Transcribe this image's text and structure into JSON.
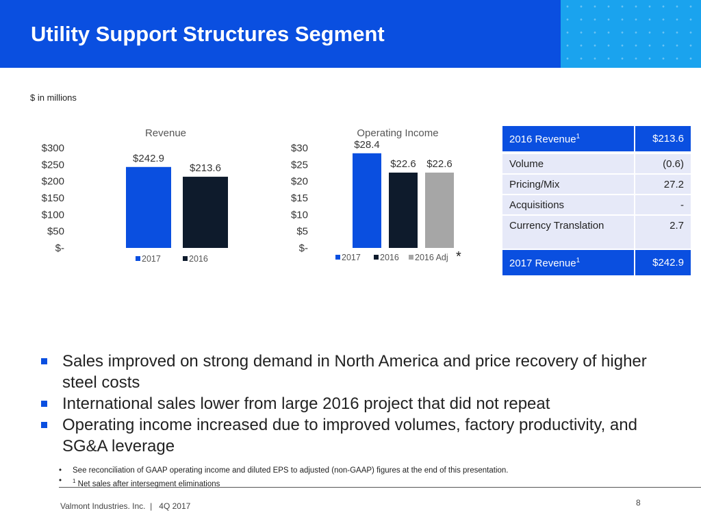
{
  "header": {
    "title": "Utility Support Structures Segment"
  },
  "units_note": "$ in millions",
  "colors": {
    "blue": "#0a4fe0",
    "navy": "#0e1b2c",
    "gray": "#a6a6a6",
    "header_accent": "#1aa3ee"
  },
  "chart_data": [
    {
      "type": "bar",
      "title": "Revenue",
      "categories": [
        "2017",
        "2016"
      ],
      "values": [
        242.9,
        213.6
      ],
      "data_labels": [
        "$242.9",
        "$213.6"
      ],
      "ylim": [
        0,
        300
      ],
      "yticks": [
        300,
        250,
        200,
        150,
        100,
        50,
        0
      ],
      "ytick_labels": [
        "$300",
        "$250",
        "$200",
        "$150",
        "$100",
        "$50",
        "$-"
      ],
      "legend": [
        "2017",
        "2016"
      ],
      "legend_position": "bottom",
      "grid": false
    },
    {
      "type": "bar",
      "title": "Operating Income",
      "categories": [
        "2017",
        "2016",
        "2016 Adj"
      ],
      "values": [
        28.4,
        22.6,
        22.6
      ],
      "data_labels": [
        "$28.4",
        "$22.6",
        "$22.6"
      ],
      "ylim": [
        0,
        30
      ],
      "yticks": [
        30,
        25,
        20,
        15,
        10,
        5,
        0
      ],
      "ytick_labels": [
        "$30",
        "$25",
        "$20",
        "$15",
        "$10",
        "$5",
        "$-"
      ],
      "legend": [
        "2017",
        "2016",
        "2016 Adj"
      ],
      "legend_position": "bottom",
      "annotation": "*",
      "grid": false
    }
  ],
  "revenue_bridge": {
    "header": {
      "label": "2016 Revenue",
      "sup": "1",
      "value": "$213.6"
    },
    "rows": [
      {
        "label": "Volume",
        "value": "(0.6)"
      },
      {
        "label": "Pricing/Mix",
        "value": "27.2"
      },
      {
        "label": "Acquisitions",
        "value": "-"
      },
      {
        "label": "Currency Translation",
        "value": "2.7"
      }
    ],
    "footer": {
      "label": "2017 Revenue",
      "sup": "1",
      "value": "$242.9"
    }
  },
  "bullets": [
    "Sales improved on strong demand in North America and price recovery of higher steel costs",
    "International sales lower from large 2016 project that did not repeat",
    "Operating income increased due to improved volumes, factory productivity, and SG&A leverage"
  ],
  "notes": {
    "bullet_char": "•",
    "reconciliation": "See reconciliation of GAAP operating income and diluted EPS to adjusted (non-GAAP) figures at the end of this presentation.",
    "footnote_sup": "1",
    "footnote": "Net sales after intersegment eliminations"
  },
  "footer": {
    "company": "Valmont Industries. Inc.  |   4Q 2017",
    "page": "8"
  }
}
